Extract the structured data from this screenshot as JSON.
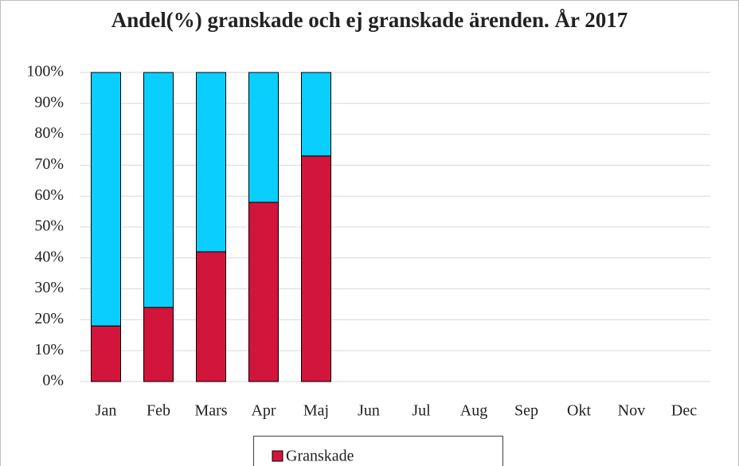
{
  "chart_data": {
    "type": "stacked_bar",
    "title": "Andel(%) granskade och ej granskade ärenden.  År 2017",
    "categories": [
      "Jan",
      "Feb",
      "Mars",
      "Apr",
      "Maj",
      "Jun",
      "Jul",
      "Aug",
      "Sep",
      "Okt",
      "Nov",
      "Dec"
    ],
    "series": [
      {
        "name": "Granskade",
        "color": "#d2153a",
        "values": [
          18,
          24,
          42,
          58,
          73,
          null,
          null,
          null,
          null,
          null,
          null,
          null
        ]
      },
      {
        "color": "#0acffe",
        "values": [
          82,
          76,
          58,
          42,
          27,
          null,
          null,
          null,
          null,
          null,
          null,
          null
        ]
      }
    ],
    "ylim": [
      0,
      100
    ],
    "yticks": [
      {
        "value": 0,
        "label": "0%"
      },
      {
        "value": 10,
        "label": "10%"
      },
      {
        "value": 20,
        "label": "20%"
      },
      {
        "value": 30,
        "label": "30%"
      },
      {
        "value": 40,
        "label": "40%"
      },
      {
        "value": 50,
        "label": "50%"
      },
      {
        "value": 60,
        "label": "60%"
      },
      {
        "value": 70,
        "label": "70%"
      },
      {
        "value": 80,
        "label": "80%"
      },
      {
        "value": 90,
        "label": "90%"
      },
      {
        "value": 100,
        "label": "100%"
      }
    ],
    "grid": true,
    "legend": "bottom"
  }
}
